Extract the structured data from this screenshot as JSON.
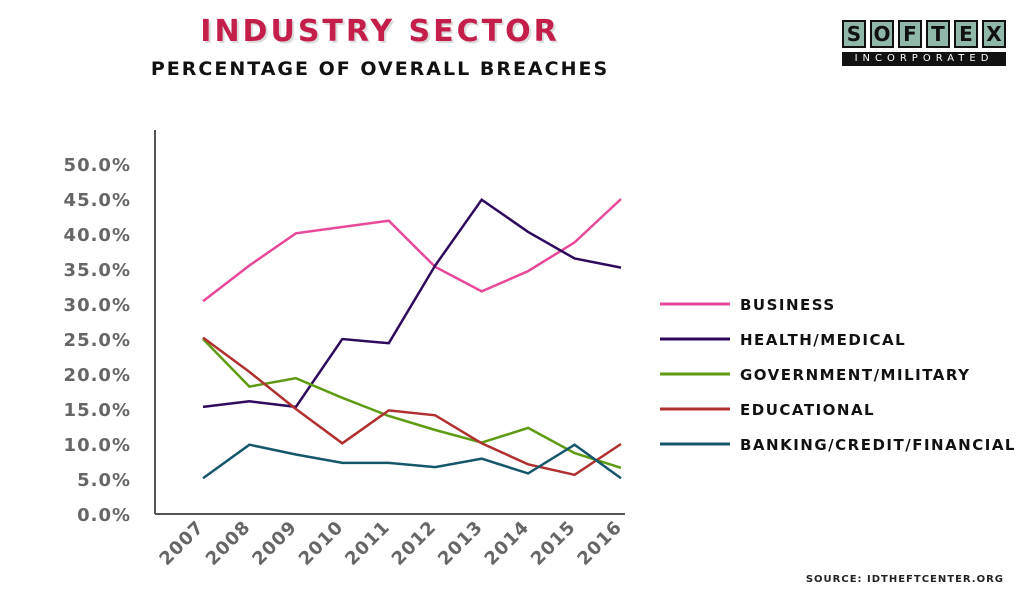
{
  "title": "INDUSTRY SECTOR",
  "subtitle": "PERCENTAGE OF OVERALL BREACHES",
  "logo": {
    "letters": [
      "S",
      "O",
      "F",
      "T",
      "E",
      "X"
    ],
    "tagline": "INCORPORATED"
  },
  "source": "SOURCE:  IDTHEFTCENTER.ORG",
  "chart_data": {
    "type": "line",
    "title": "INDUSTRY SECTOR",
    "subtitle": "PERCENTAGE OF OVERALL BREACHES",
    "x": [
      "2007",
      "2008",
      "2009",
      "2010",
      "2011",
      "2012",
      "2013",
      "2014",
      "2015",
      "2016"
    ],
    "y_ticks": [
      "0.0%",
      "5.0%",
      "10.0%",
      "15.0%",
      "20.0%",
      "25.0%",
      "30.0%",
      "35.0%",
      "40.0%",
      "45.0%",
      "50.0%"
    ],
    "ylim": [
      0,
      50
    ],
    "grid": false,
    "legend_position": "right",
    "series": [
      {
        "name": "BUSINESS",
        "color": "#e8489a",
        "values": [
          30.4,
          35.5,
          40.1,
          41.0,
          41.9,
          35.3,
          31.8,
          34.7,
          38.8,
          45.0
        ]
      },
      {
        "name": "HEALTH/MEDICAL",
        "color": "#2e0a5c",
        "values": [
          15.3,
          16.1,
          15.3,
          25.0,
          24.4,
          35.5,
          44.9,
          40.3,
          36.5,
          35.2
        ]
      },
      {
        "name": "GOVERNMENT/MILITARY",
        "color": "#5e9a12",
        "values": [
          25.0,
          18.2,
          19.4,
          16.6,
          14.0,
          12.0,
          10.2,
          12.3,
          8.7,
          6.6
        ]
      },
      {
        "name": "EDUCATIONAL",
        "color": "#b03030",
        "values": [
          25.2,
          20.3,
          15.0,
          10.1,
          14.8,
          14.1,
          10.1,
          7.1,
          5.6,
          10.0
        ]
      },
      {
        "name": "BANKING/CREDIT/FINANCIAL",
        "color": "#14566a",
        "values": [
          5.1,
          9.9,
          8.5,
          7.3,
          7.3,
          6.7,
          7.9,
          5.8,
          9.9,
          5.1
        ]
      }
    ]
  }
}
